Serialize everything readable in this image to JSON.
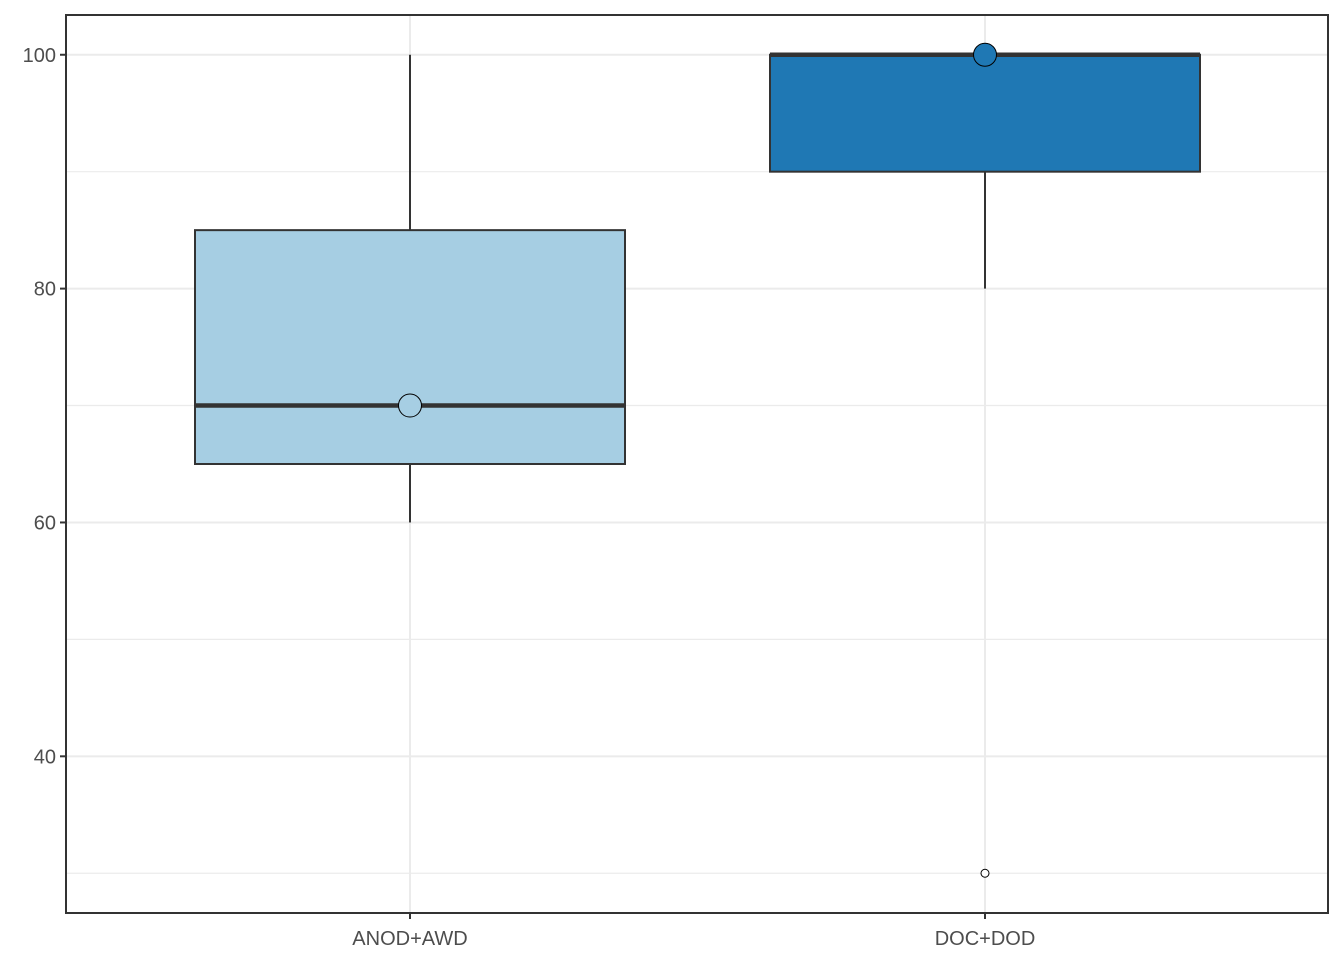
{
  "chart_data": {
    "type": "boxplot",
    "title": "",
    "xlabel": "",
    "ylabel": "",
    "ylim": [
      26.6,
      103.4
    ],
    "yticks": [
      40,
      60,
      80,
      100
    ],
    "minor_yticks": [
      30,
      50,
      70,
      90
    ],
    "grid": true,
    "categories": [
      "ANOD+AWD",
      "DOC+DOD"
    ],
    "boxes": [
      {
        "category": "ANOD+AWD",
        "fill": "#a6cee3",
        "whisker_low": 60,
        "q1": 65,
        "median": 70,
        "q3": 85,
        "whisker_high": 100,
        "mean": 70,
        "outliers": []
      },
      {
        "category": "DOC+DOD",
        "fill": "#1f78b4",
        "whisker_low": 80,
        "q1": 90,
        "median": 100,
        "q3": 100,
        "whisker_high": 100,
        "mean": 100,
        "outliers": [
          30
        ]
      }
    ],
    "colors": {
      "grid": "#ebebeb",
      "box_line": "#333333",
      "axis": "#333333",
      "tick_text": "#4d4d4d"
    }
  }
}
